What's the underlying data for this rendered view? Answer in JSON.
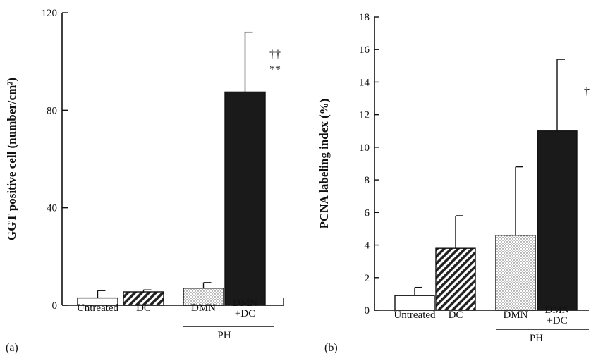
{
  "chart_data": [
    {
      "type": "bar",
      "panel_label": "(a)",
      "title": "",
      "ylabel": "GGT positive cell (number/cm²)",
      "xlabel": "",
      "ylim": [
        0,
        120
      ],
      "yticks": [
        0,
        40,
        80,
        120
      ],
      "grid": false,
      "categories": [
        "Untreated",
        "DC",
        "DMN",
        "DMN\n+DC"
      ],
      "values": [
        3,
        5.5,
        7,
        87.5
      ],
      "errors": [
        3,
        0.8,
        2.3,
        24.5
      ],
      "patterns": [
        "white",
        "hatch",
        "dots",
        "solid"
      ],
      "group_label": {
        "text": "PH",
        "categories": [
          2,
          3
        ]
      },
      "annotations": [
        {
          "category": 3,
          "lines": [
            "††",
            "**"
          ]
        }
      ]
    },
    {
      "type": "bar",
      "panel_label": "(b)",
      "title": "",
      "ylabel": "PCNA labeling index (%)",
      "xlabel": "",
      "ylim": [
        0,
        18
      ],
      "yticks": [
        0,
        2,
        4,
        6,
        8,
        10,
        12,
        14,
        16,
        18
      ],
      "grid": false,
      "categories": [
        "Untreated",
        "DC",
        "DMN",
        "DMN\n+DC"
      ],
      "values": [
        0.9,
        3.8,
        4.6,
        11.0
      ],
      "errors": [
        0.5,
        2.0,
        4.2,
        4.4
      ],
      "patterns": [
        "white",
        "hatch",
        "dots",
        "solid"
      ],
      "group_label": {
        "text": "PH",
        "categories": [
          2,
          3
        ]
      },
      "annotations": [
        {
          "category": 3,
          "lines": [
            "†"
          ]
        }
      ]
    }
  ]
}
